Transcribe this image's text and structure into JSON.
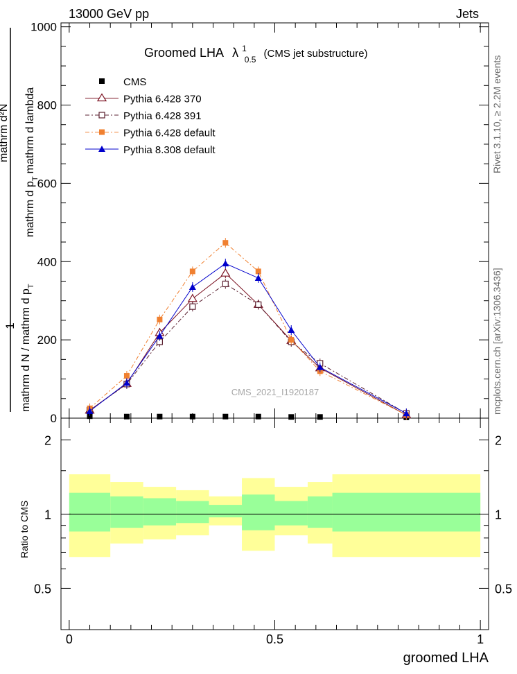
{
  "header": {
    "left": "13000 GeV pp",
    "right": "Jets"
  },
  "side": {
    "rivet": "Rivet 3.1.10, ≥ 2.2M events",
    "mcplots": "mcplots.cern.ch [arXiv:1306.3436]"
  },
  "watermark": "CMS_2021_I1920187",
  "colors": {
    "cms": "#000000",
    "p370": "#7a1020",
    "p391": "#5a2030",
    "p6def": "#f08030",
    "p8def": "#0000cc",
    "band_inner": "#99ff99",
    "band_outer": "#ffff99"
  },
  "chart_data": [
    {
      "type": "line",
      "title_main": "Groomed LHA",
      "title_lambda": "λ",
      "title_sup": "1",
      "title_sub": "0.5",
      "title_paren": "(CMS jet substructure)",
      "ylabel_pre": "1",
      "ylabel_den": "mathrm d N / mathrm d p",
      "ylabel_den_sub": "T",
      "ylabel_num": "mathrm d²N",
      "ylabel_num_den": "mathrm d p",
      "ylabel_num_den_sub": "T",
      "ylabel_num_den_tail": "mathrm d lambda",
      "xlim": [
        -0.02,
        1.02
      ],
      "ylim": [
        0,
        1010
      ],
      "yticks": [
        0,
        200,
        400,
        600,
        800,
        1000
      ],
      "ytick_labels": [
        "0",
        "200",
        "400",
        "600",
        "800",
        "1000"
      ],
      "legend_position": "top-left",
      "x": [
        0.05,
        0.14,
        0.22,
        0.3,
        0.38,
        0.46,
        0.54,
        0.61,
        0.82
      ],
      "series": [
        {
          "name": "CMS",
          "marker": "filled-square",
          "values": [
            5,
            4,
            4,
            4,
            4,
            4,
            3,
            3,
            2
          ]
        },
        {
          "name": "Pythia 6.428 370",
          "marker": "open-triangle",
          "values": [
            20,
            88,
            218,
            305,
            370,
            290,
            198,
            128,
            8
          ]
        },
        {
          "name": "Pythia 6.428 391",
          "marker": "open-square",
          "values": [
            20,
            87,
            195,
            285,
            343,
            290,
            195,
            140,
            12
          ]
        },
        {
          "name": "Pythia 6.428 default",
          "marker": "filled-square",
          "values": [
            25,
            108,
            252,
            375,
            448,
            375,
            200,
            120,
            8
          ]
        },
        {
          "name": "Pythia 8.308 default",
          "marker": "filled-triangle",
          "values": [
            18,
            90,
            210,
            335,
            395,
            358,
            225,
            130,
            12
          ]
        }
      ]
    },
    {
      "type": "area",
      "ylabel": "Ratio to CMS",
      "xlabel": "groomed LHA",
      "xticks": [
        0,
        0.5,
        1
      ],
      "xtick_labels": [
        "0",
        "0.5",
        "1"
      ],
      "yticks": [
        0.5,
        1,
        2
      ],
      "ytick_labels": [
        "0.5",
        "1",
        "2"
      ],
      "ylim": [
        0.34,
        2.45
      ],
      "bins": [
        0.0,
        0.1,
        0.18,
        0.26,
        0.34,
        0.42,
        0.5,
        0.58,
        0.64,
        1.0
      ],
      "inner_band": [
        [
          0.85,
          1.22
        ],
        [
          0.88,
          1.18
        ],
        [
          0.9,
          1.16
        ],
        [
          0.92,
          1.13
        ],
        [
          0.97,
          1.09
        ],
        [
          0.86,
          1.2
        ],
        [
          0.9,
          1.13
        ],
        [
          0.88,
          1.18
        ],
        [
          0.85,
          1.22
        ]
      ],
      "outer_band": [
        [
          0.67,
          1.45
        ],
        [
          0.76,
          1.35
        ],
        [
          0.79,
          1.29
        ],
        [
          0.82,
          1.25
        ],
        [
          0.9,
          1.18
        ],
        [
          0.71,
          1.4
        ],
        [
          0.82,
          1.29
        ],
        [
          0.76,
          1.35
        ],
        [
          0.67,
          1.45
        ]
      ]
    }
  ]
}
